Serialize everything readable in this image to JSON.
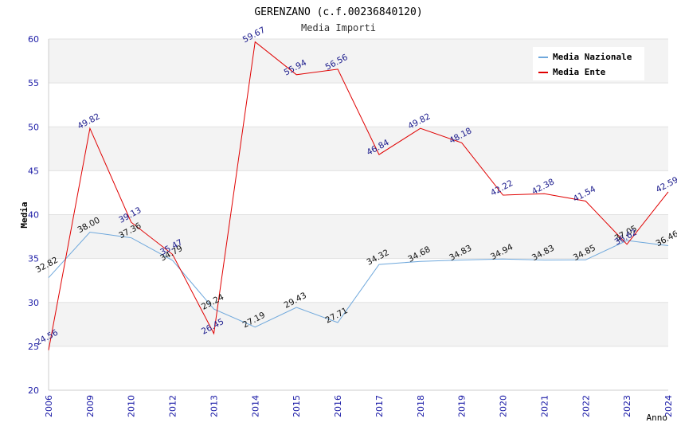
{
  "chart_data": {
    "type": "line",
    "title": "GERENZANO (c.f.00236840120)",
    "subtitle": "Media Importi",
    "xlabel": "Anno",
    "ylabel": "Media",
    "ylim": [
      20,
      60
    ],
    "yticks": [
      20,
      25,
      30,
      35,
      40,
      45,
      50,
      55,
      60
    ],
    "categories": [
      "2006",
      "2009",
      "2010",
      "2012",
      "2013",
      "2014",
      "2015",
      "2016",
      "2017",
      "2018",
      "2019",
      "2020",
      "2021",
      "2022",
      "2023",
      "2024"
    ],
    "legend_position": "top-right",
    "grid": true,
    "series": [
      {
        "name": "Media Nazionale",
        "color": "#6fa8dc",
        "values": [
          32.82,
          38.0,
          37.36,
          34.79,
          29.24,
          27.19,
          29.43,
          27.71,
          34.32,
          34.68,
          34.83,
          34.94,
          34.83,
          34.85,
          37.05,
          36.46
        ],
        "labels": [
          "32.82",
          "38.00",
          "37.36",
          "34.79",
          "29.24",
          "27.19",
          "29.43",
          "27.71",
          "34.32",
          "34.68",
          "34.83",
          "34.94",
          "34.83",
          "34.85",
          "37.05",
          "36.46"
        ]
      },
      {
        "name": "Media Ente",
        "color": "#e00000",
        "values": [
          24.56,
          49.82,
          39.13,
          35.47,
          26.45,
          59.67,
          55.94,
          56.56,
          46.84,
          49.82,
          48.18,
          42.22,
          42.38,
          41.54,
          36.62,
          42.59
        ],
        "labels": [
          "24.56",
          "49.82",
          "39.13",
          "35.47",
          "26.45",
          "59.67",
          "55.94",
          "56.56",
          "46.84",
          "49.82",
          "48.18",
          "42.22",
          "42.38",
          "41.54",
          "36.62",
          "42.59"
        ]
      }
    ]
  }
}
